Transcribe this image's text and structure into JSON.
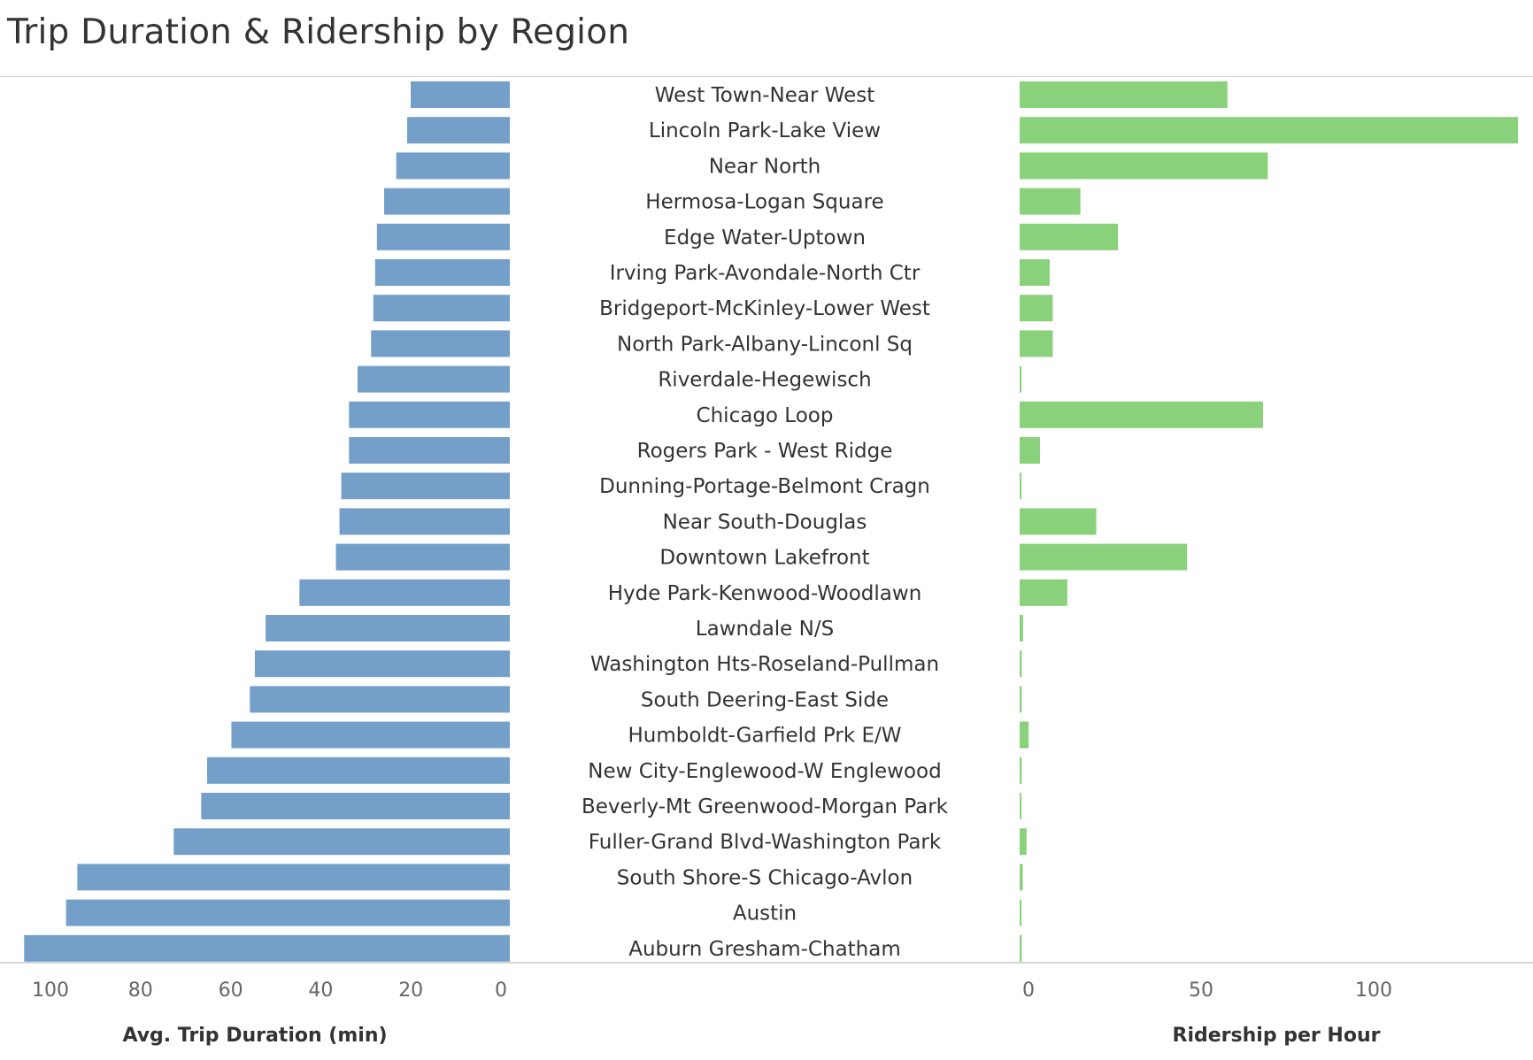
{
  "title": "Trip Duration & Ridership by Region",
  "colors": {
    "duration_bar": "#739fc9",
    "ridership_bar": "#8ad17b",
    "axis_line": "#c8c8c8",
    "text": "#333333",
    "tick_text": "#666666"
  },
  "chart_data": [
    {
      "type": "bar",
      "orientation": "horizontal",
      "direction": "right-to-left",
      "categories": [
        "West Town-Near West",
        "Lincoln Park-Lake View",
        "Near North",
        "Hermosa-Logan Square",
        "Edge Water-Uptown",
        "Irving Park-Avondale-North Ctr",
        "Bridgeport-McKinley-Lower West",
        "North Park-Albany-Linconl Sq",
        "Riverdale-Hegewisch",
        "Chicago Loop",
        "Rogers Park - West Ridge",
        "Dunning-Portage-Belmont Cragn",
        "Near South-Douglas",
        "Downtown Lakefront",
        "Hyde Park-Kenwood-Woodlawn",
        "Lawndale N/S",
        "Washington Hts-Roseland-Pullman",
        "South Deering-East Side",
        "Humboldt-Garfield Prk E/W",
        "New City-Englewood-W Englewood",
        "Beverly-Mt Greenwood-Morgan Park",
        "Fuller-Grand Blvd-Washington Park",
        "South Shore-S Chicago-Avlon",
        "Austin",
        "Auburn Gresham-Chatham"
      ],
      "values": [
        22,
        22.8,
        25.2,
        27.9,
        29.5,
        29.9,
        30.3,
        30.8,
        33.8,
        35.7,
        35.7,
        37.4,
        37.8,
        38.6,
        46.7,
        54.2,
        56.6,
        57.7,
        61.8,
        67.2,
        68.5,
        74.6,
        96,
        98.5,
        107.8
      ],
      "xlabel": "Avg. Trip Duration (min)",
      "ticks": [
        100,
        80,
        60,
        40,
        20,
        0
      ],
      "xlim": [
        0,
        110
      ]
    },
    {
      "type": "bar",
      "orientation": "horizontal",
      "direction": "left-to-right",
      "categories": [
        "West Town-Near West",
        "Lincoln Park-Lake View",
        "Near North",
        "Hermosa-Logan Square",
        "Edge Water-Uptown",
        "Irving Park-Avondale-North Ctr",
        "Bridgeport-McKinley-Lower West",
        "North Park-Albany-Linconl Sq",
        "Riverdale-Hegewisch",
        "Chicago Loop",
        "Rogers Park - West Ridge",
        "Dunning-Portage-Belmont Cragn",
        "Near South-Douglas",
        "Downtown Lakefront",
        "Hyde Park-Kenwood-Woodlawn",
        "Lawndale N/S",
        "Washington Hts-Roseland-Pullman",
        "South Deering-East Side",
        "Humboldt-Garfield Prk E/W",
        "New City-Englewood-W Englewood",
        "Beverly-Mt Greenwood-Morgan Park",
        "Fuller-Grand Blvd-Washington Park",
        "South Shore-S Chicago-Avlon",
        "Austin",
        "Auburn Gresham-Chatham"
      ],
      "values": [
        60.2,
        144.4,
        71.9,
        17.6,
        28.5,
        8.7,
        9.6,
        9.6,
        0.4,
        70.5,
        5.9,
        0.4,
        22.2,
        48.5,
        13.8,
        1,
        0.6,
        0.6,
        2.6,
        0.6,
        0.5,
        2,
        0.9,
        0.5,
        0.6
      ],
      "xlabel": "Ridership per Hour",
      "ticks": [
        0,
        50,
        100
      ],
      "xlim": [
        0,
        150
      ]
    }
  ]
}
